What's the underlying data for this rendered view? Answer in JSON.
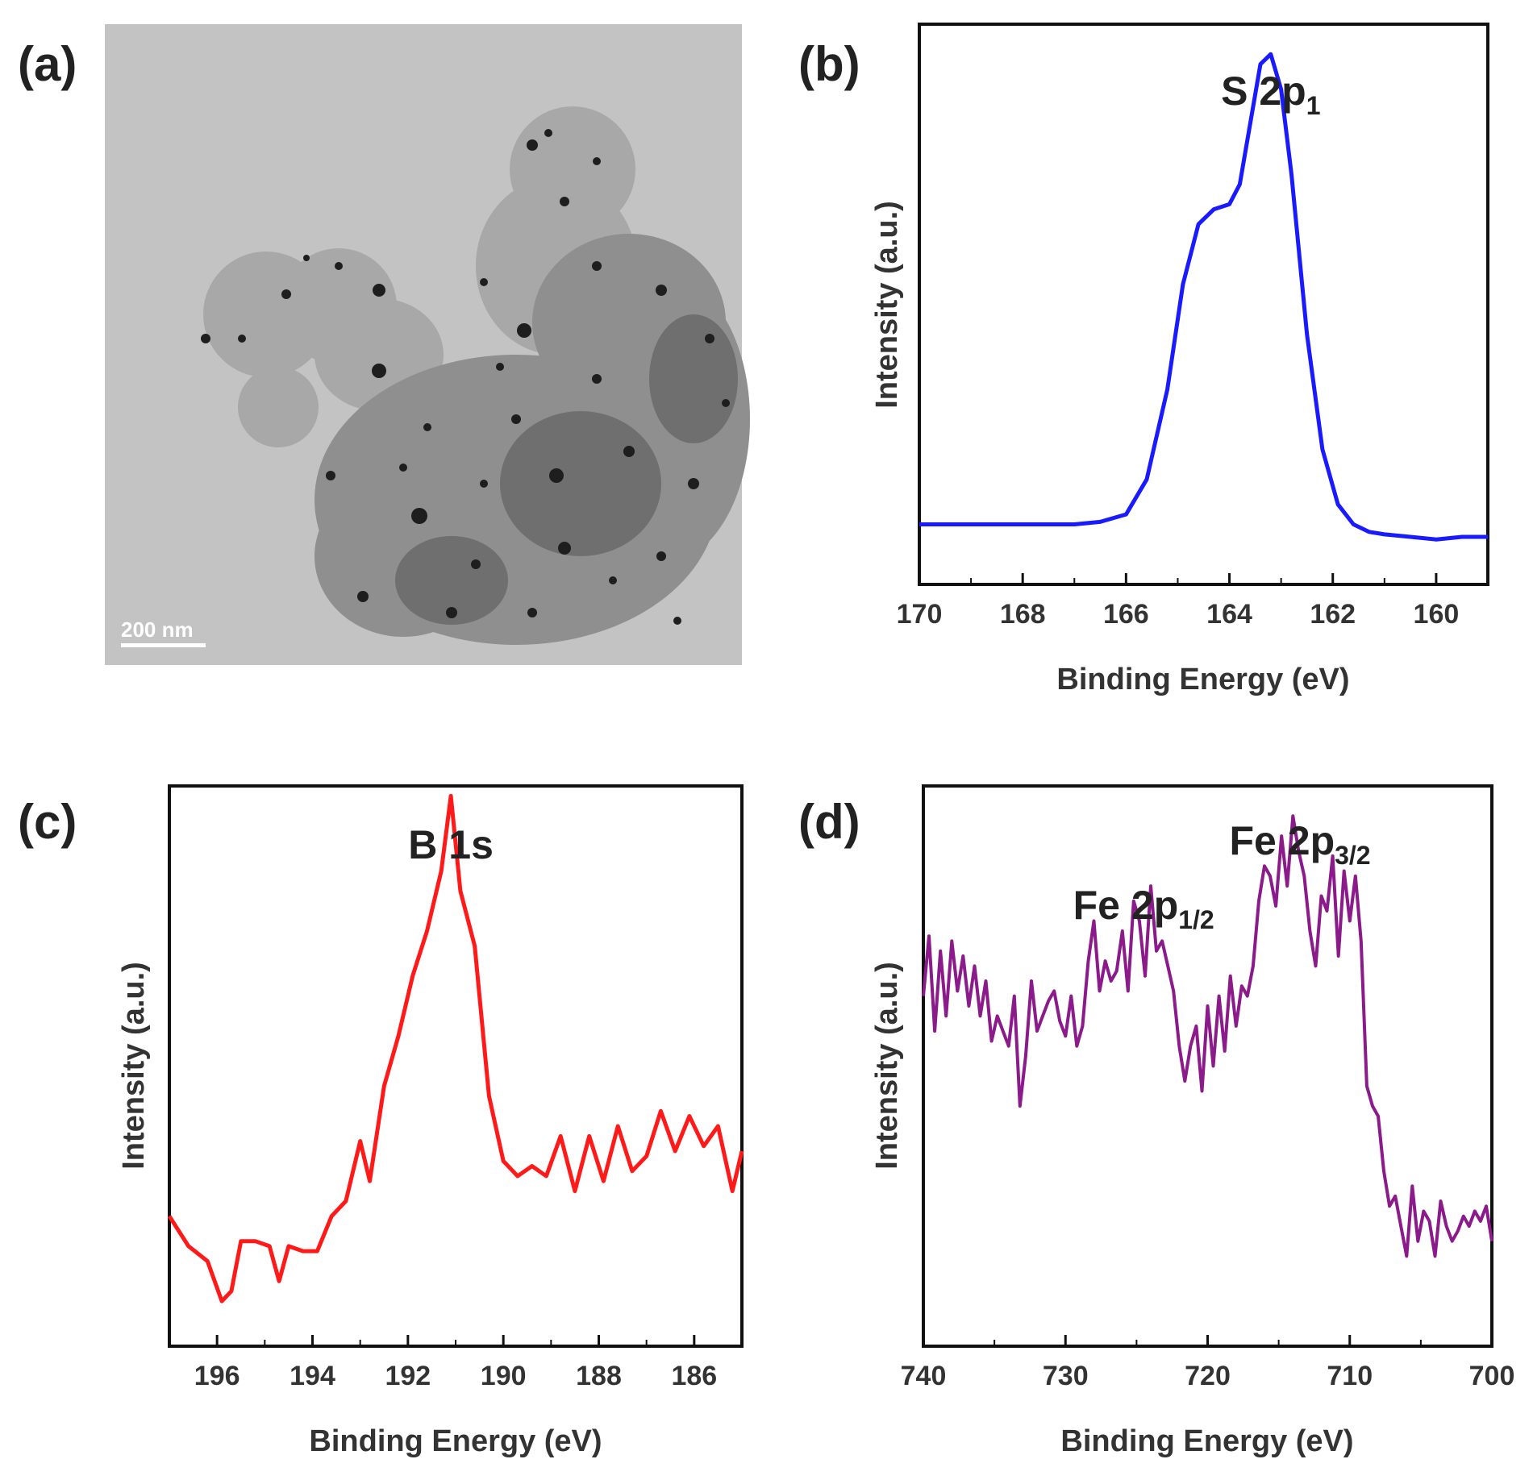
{
  "panels": {
    "a": {
      "label": "(a)",
      "scale_bar": "200 nm"
    },
    "b": {
      "label": "(b)"
    },
    "c": {
      "label": "(c)"
    },
    "d": {
      "label": "(d)"
    }
  },
  "colors": {
    "b": "#1a1aff",
    "c": "#ff1a1a",
    "d": "#8b1a8b"
  },
  "chart_data": [
    {
      "panel": "b",
      "type": "line",
      "title": "",
      "xlabel": "Binding Energy (eV)",
      "ylabel": "Intensity (a.u.)",
      "xlim": [
        170,
        159
      ],
      "ylim": [
        0,
        1.12
      ],
      "xticks": [
        170,
        168,
        166,
        164,
        162,
        160
      ],
      "annotations": [
        {
          "main": "S 2p",
          "sub": "1",
          "x": 163.2
        }
      ],
      "series": [
        {
          "name": "S 2p",
          "x": [
            170,
            169,
            168,
            167,
            166.5,
            166,
            165.6,
            165.2,
            164.9,
            164.6,
            164.3,
            164.0,
            163.8,
            163.6,
            163.4,
            163.2,
            163.0,
            162.8,
            162.5,
            162.2,
            161.9,
            161.6,
            161.3,
            161.0,
            160.5,
            160.0,
            159.5,
            159.0
          ],
          "y": [
            0.12,
            0.12,
            0.12,
            0.12,
            0.125,
            0.14,
            0.21,
            0.39,
            0.6,
            0.72,
            0.75,
            0.76,
            0.8,
            0.92,
            1.04,
            1.06,
            0.99,
            0.82,
            0.5,
            0.27,
            0.16,
            0.12,
            0.105,
            0.1,
            0.095,
            0.09,
            0.095,
            0.095
          ]
        }
      ]
    },
    {
      "panel": "c",
      "type": "line",
      "title": "",
      "xlabel": "Binding Energy (eV)",
      "ylabel": "Intensity (a.u.)",
      "xlim": [
        197,
        185
      ],
      "ylim": [
        0,
        1.12
      ],
      "xticks": [
        196,
        194,
        192,
        190,
        188,
        186
      ],
      "annotations": [
        {
          "main": "B 1s",
          "sub": "",
          "x": 191.1
        }
      ],
      "series": [
        {
          "name": "B 1s",
          "x": [
            197,
            196.6,
            196.2,
            195.9,
            195.7,
            195.5,
            195.2,
            194.9,
            194.7,
            194.5,
            194.2,
            193.9,
            193.6,
            193.3,
            193.0,
            192.8,
            192.5,
            192.2,
            191.9,
            191.6,
            191.3,
            191.1,
            190.9,
            190.6,
            190.3,
            190.0,
            189.7,
            189.4,
            189.1,
            188.8,
            188.5,
            188.2,
            187.9,
            187.6,
            187.3,
            187.0,
            186.7,
            186.4,
            186.1,
            185.8,
            185.5,
            185.2,
            185.0
          ],
          "y": [
            0.26,
            0.2,
            0.17,
            0.09,
            0.11,
            0.21,
            0.21,
            0.2,
            0.13,
            0.2,
            0.19,
            0.19,
            0.26,
            0.29,
            0.41,
            0.33,
            0.52,
            0.62,
            0.74,
            0.83,
            0.95,
            1.1,
            0.91,
            0.8,
            0.5,
            0.37,
            0.34,
            0.36,
            0.34,
            0.42,
            0.31,
            0.42,
            0.33,
            0.44,
            0.35,
            0.38,
            0.47,
            0.39,
            0.46,
            0.4,
            0.44,
            0.31,
            0.39
          ]
        }
      ]
    },
    {
      "panel": "d",
      "type": "line",
      "title": "",
      "xlabel": "Binding Energy (eV)",
      "ylabel": "Intensity (a.u.)",
      "xlim": [
        740,
        700
      ],
      "ylim": [
        0,
        1.12
      ],
      "xticks": [
        740,
        730,
        720,
        710,
        700
      ],
      "annotations": [
        {
          "main": "Fe 2p",
          "sub": "1/2",
          "x": 724.5
        },
        {
          "main": "Fe 2p",
          "sub": "3/2",
          "x": 713.5
        }
      ],
      "series": [
        {
          "name": "Fe 2p",
          "x": [
            740.0,
            739.6,
            739.2,
            738.8,
            738.4,
            738.0,
            737.6,
            737.2,
            736.8,
            736.4,
            736.0,
            735.6,
            735.2,
            734.8,
            734.4,
            734.0,
            733.6,
            733.2,
            732.8,
            732.4,
            732.0,
            731.6,
            731.2,
            730.8,
            730.4,
            730.0,
            729.6,
            729.2,
            728.8,
            728.4,
            728.0,
            727.6,
            727.2,
            726.8,
            726.4,
            726.0,
            725.6,
            725.2,
            724.8,
            724.4,
            724.0,
            723.6,
            723.2,
            722.8,
            722.4,
            722.0,
            721.6,
            721.2,
            720.8,
            720.4,
            720.0,
            719.6,
            719.2,
            718.8,
            718.4,
            718.0,
            717.6,
            717.2,
            716.8,
            716.4,
            716.0,
            715.6,
            715.2,
            714.8,
            714.4,
            714.0,
            713.6,
            713.2,
            712.8,
            712.4,
            712.0,
            711.6,
            711.2,
            710.8,
            710.4,
            710.0,
            709.6,
            709.2,
            708.8,
            708.4,
            708.0,
            707.6,
            707.2,
            706.8,
            706.4,
            706.0,
            705.6,
            705.2,
            704.8,
            704.4,
            704.0,
            703.6,
            703.2,
            702.8,
            702.4,
            702.0,
            701.6,
            701.2,
            700.8,
            700.4,
            700.0
          ],
          "y": [
            0.7,
            0.82,
            0.63,
            0.79,
            0.66,
            0.81,
            0.71,
            0.78,
            0.68,
            0.76,
            0.66,
            0.73,
            0.61,
            0.66,
            0.63,
            0.6,
            0.7,
            0.48,
            0.58,
            0.73,
            0.63,
            0.66,
            0.69,
            0.71,
            0.65,
            0.62,
            0.7,
            0.6,
            0.64,
            0.77,
            0.85,
            0.71,
            0.77,
            0.73,
            0.75,
            0.83,
            0.71,
            0.89,
            0.85,
            0.74,
            0.92,
            0.79,
            0.81,
            0.76,
            0.71,
            0.6,
            0.53,
            0.6,
            0.64,
            0.51,
            0.68,
            0.56,
            0.7,
            0.59,
            0.74,
            0.64,
            0.72,
            0.7,
            0.76,
            0.89,
            0.96,
            0.94,
            0.88,
            1.02,
            0.92,
            1.06,
            0.99,
            0.94,
            0.83,
            0.76,
            0.9,
            0.87,
            0.98,
            0.78,
            0.95,
            0.85,
            0.94,
            0.81,
            0.52,
            0.48,
            0.46,
            0.35,
            0.28,
            0.3,
            0.24,
            0.18,
            0.32,
            0.21,
            0.27,
            0.25,
            0.18,
            0.29,
            0.24,
            0.21,
            0.23,
            0.26,
            0.24,
            0.27,
            0.25,
            0.28,
            0.21
          ]
        }
      ]
    }
  ]
}
